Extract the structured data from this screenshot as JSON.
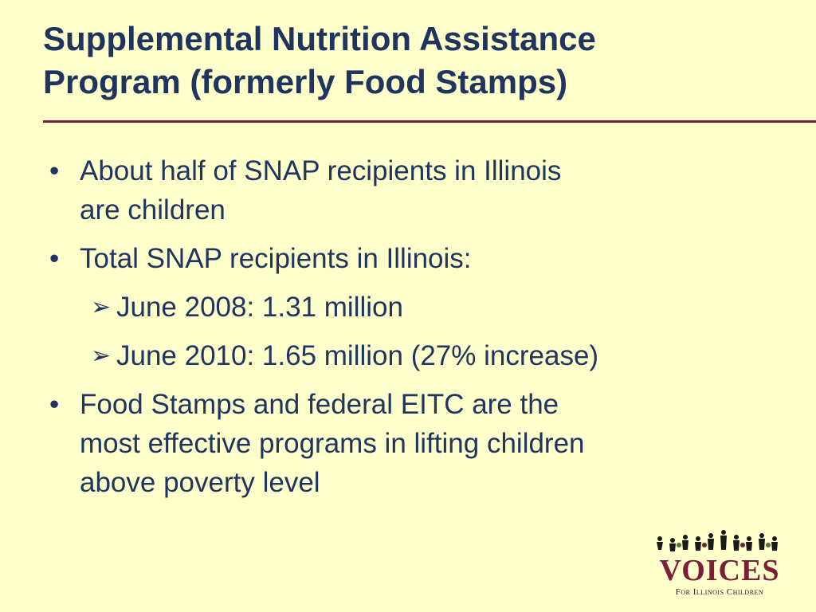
{
  "slide": {
    "title_lines": [
      "Supplemental Nutrition Assistance",
      "Program (formerly Food Stamps)"
    ],
    "bullets": [
      {
        "lines": [
          "About half of SNAP recipients in Illinois",
          "are children"
        ]
      },
      {
        "lines": [
          "Total SNAP recipients in Illinois:"
        ]
      },
      {
        "lines": [
          "Food Stamps and federal EITC are the",
          "most effective programs in lifting children",
          "above poverty level"
        ]
      }
    ],
    "sub_bullets": [
      "June 2008:  1.31 million",
      "June 2010:  1.65 million (27% increase)"
    ],
    "bullet_glyph": "•",
    "sub_glyph": "➢"
  },
  "logo": {
    "word": "VOICES",
    "tagline": "For Illinois Children",
    "icon": "children-silhouettes-icon"
  },
  "colors": {
    "background": "#ffffcc",
    "text": "#1f3560",
    "accent": "#7a1e3a"
  }
}
